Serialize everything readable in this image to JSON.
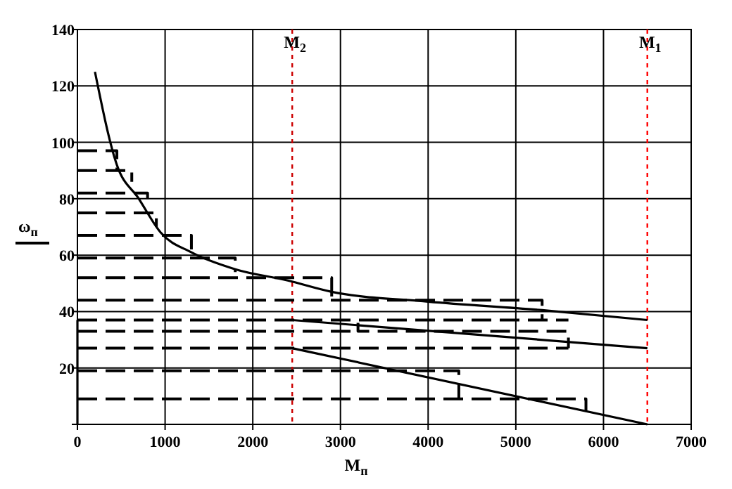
{
  "chart_data": {
    "type": "line",
    "xlabel": "M$_{п}$",
    "ylabel": "ω$_{п}$",
    "xlim": [
      0,
      7000
    ],
    "ylim": [
      0,
      140
    ],
    "xticks": [
      0,
      1000,
      2000,
      3000,
      4000,
      5000,
      6000,
      7000
    ],
    "yticks": [
      {
        "value": 0,
        "label": null
      },
      20,
      40,
      60,
      80,
      100,
      120,
      140
    ],
    "grid": true,
    "marker": "none",
    "series": [
      {
        "color": "#000000",
        "line_style": "solid",
        "x": [
          200,
          450,
          700,
          950,
          1300,
          1800,
          2400,
          2900,
          4000,
          5300,
          6500
        ],
        "values": [
          125,
          92,
          80,
          68,
          61,
          55,
          51,
          47,
          43.5,
          40.5,
          37
        ]
      },
      {
        "color": "#000000",
        "line_style": "solid",
        "x": [
          2450,
          6500
        ],
        "values": [
          37,
          27
        ]
      },
      {
        "color": "#000000",
        "line_style": "solid",
        "x": [
          2450,
          6500
        ],
        "values": [
          27,
          0
        ]
      },
      {
        "color": "#000000",
        "line_style": "solid",
        "x": [
          0,
          0
        ],
        "values": [
          0,
          37
        ]
      },
      {
        "color": "#000000",
        "line_style": "dashed",
        "x": [
          0,
          450,
          450
        ],
        "values": [
          97,
          97,
          90
        ]
      },
      {
        "color": "#000000",
        "line_style": "dashed",
        "x": [
          0,
          620,
          620
        ],
        "values": [
          90,
          90,
          86
        ]
      },
      {
        "color": "#000000",
        "line_style": "dashed",
        "x": [
          0,
          800,
          800
        ],
        "values": [
          82,
          82,
          77
        ]
      },
      {
        "color": "#000000",
        "line_style": "dashed",
        "x": [
          0,
          900,
          900
        ],
        "values": [
          75,
          75,
          70
        ]
      },
      {
        "color": "#000000",
        "line_style": "dashed",
        "x": [
          0,
          1300,
          1300
        ],
        "values": [
          67,
          67,
          62
        ]
      },
      {
        "color": "#000000",
        "line_style": "dashed",
        "x": [
          0,
          1800,
          1800
        ],
        "values": [
          59,
          59,
          54
        ]
      },
      {
        "color": "#000000",
        "line_style": "dashed",
        "x": [
          0,
          2900,
          2900
        ],
        "values": [
          52,
          52,
          45
        ]
      },
      {
        "color": "#000000",
        "line_style": "dashed",
        "x": [
          0,
          5300,
          5300
        ],
        "values": [
          44,
          44,
          37
        ]
      },
      {
        "color": "#000000",
        "line_style": "dashed",
        "x": [
          0,
          5600
        ],
        "values": [
          37,
          37
        ]
      },
      {
        "color": "#000000",
        "line_style": "dashed",
        "x": [
          3200,
          3200,
          5600,
          5600
        ],
        "values": [
          36,
          33,
          33,
          27
        ]
      },
      {
        "color": "#000000",
        "line_style": "dashed",
        "x": [
          0,
          3200
        ],
        "values": [
          33,
          33
        ]
      },
      {
        "color": "#000000",
        "line_style": "dashed",
        "x": [
          0,
          5600
        ],
        "values": [
          27,
          27
        ]
      },
      {
        "color": "#000000",
        "line_style": "dashed",
        "x": [
          0,
          4350,
          4350
        ],
        "values": [
          19,
          19,
          9
        ]
      },
      {
        "color": "#000000",
        "line_style": "dashed",
        "x": [
          0,
          5800,
          5800
        ],
        "values": [
          9,
          9,
          5
        ]
      }
    ],
    "ref_lines": [
      {
        "axis": "x",
        "value": 2450,
        "label": "M$_{2}$",
        "color": "#cc0000",
        "line_style": "dotted"
      },
      {
        "axis": "x",
        "value": 6500,
        "label": "M$_{1}$",
        "color": "#ff0000",
        "line_style": "dotted"
      }
    ]
  }
}
